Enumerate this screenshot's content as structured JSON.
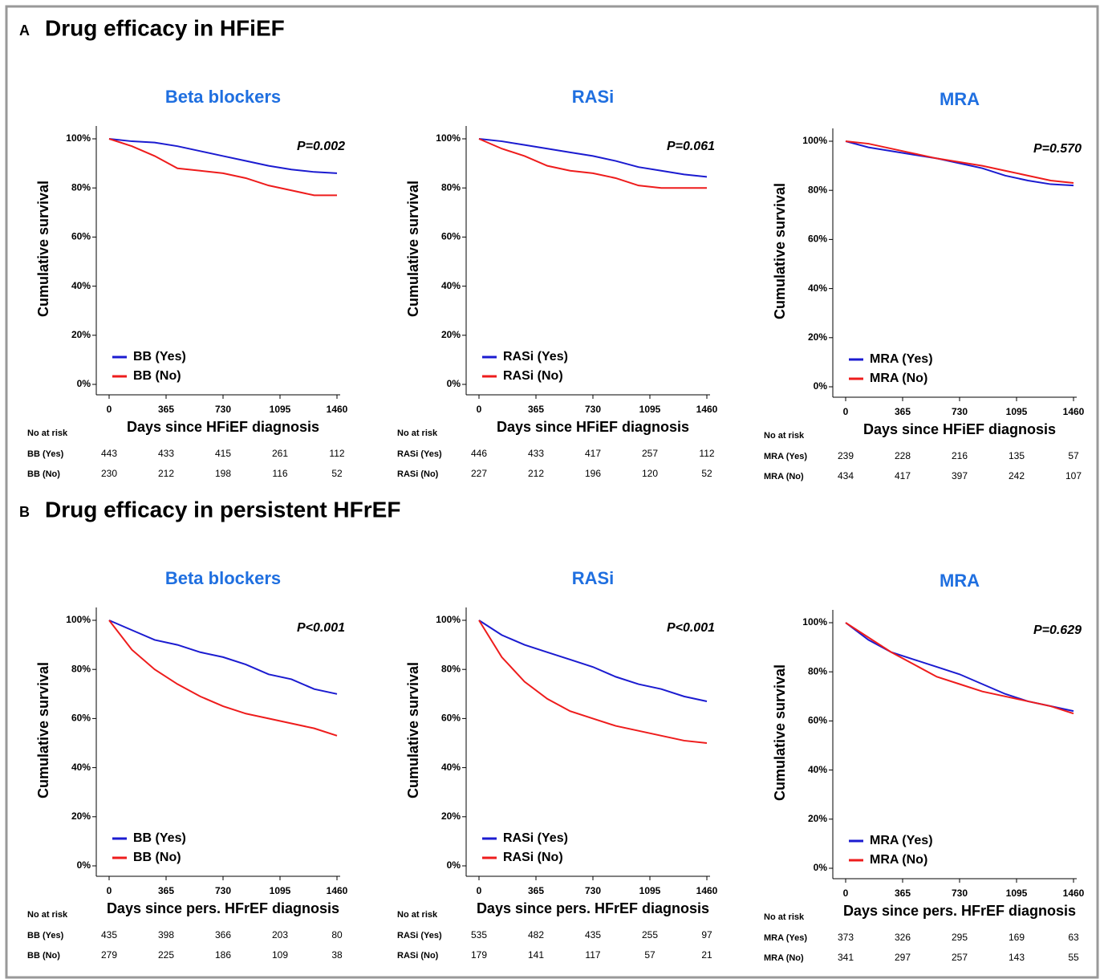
{
  "panels": [
    {
      "letter": "A",
      "title": "Drug efficacy in HFiEF"
    },
    {
      "letter": "B",
      "title": "Drug efficacy in persistent HFrEF"
    }
  ],
  "chart_data": [
    {
      "type": "line",
      "title": "Beta blockers",
      "ylabel": "Cumulative survival",
      "xlabel": "Days since HFiEF diagnosis",
      "annotation": "P=0.002",
      "x": [
        0,
        146,
        292,
        438,
        584,
        730,
        876,
        1022,
        1168,
        1314,
        1460
      ],
      "series": [
        {
          "name": "BB (Yes)",
          "color": "#1b1bd0",
          "values": [
            100,
            99,
            98.5,
            97,
            95,
            93,
            91,
            89,
            87.5,
            86.5,
            86
          ]
        },
        {
          "name": "BB (No)",
          "color": "#ee1c1c",
          "values": [
            100,
            97,
            93,
            88,
            87,
            86,
            84,
            81,
            79,
            77,
            77
          ]
        }
      ],
      "xlim": [
        0,
        1460
      ],
      "xticks": [
        0,
        365,
        730,
        1095,
        1460
      ],
      "ylim": [
        0,
        100
      ],
      "yticks": [
        {
          "value": 0,
          "label": "0%"
        },
        {
          "value": 20,
          "label": "20%"
        },
        {
          "value": 40,
          "label": "40%"
        },
        {
          "value": 60,
          "label": "60%"
        },
        {
          "value": 80,
          "label": "80%"
        },
        {
          "value": 100,
          "label": "100%"
        }
      ],
      "risk_table": {
        "title": "No at risk",
        "rows": [
          {
            "name": "BB (Yes)",
            "values": [
              443,
              433,
              415,
              261,
              112
            ]
          },
          {
            "name": "BB (No)",
            "values": [
              230,
              212,
              198,
              116,
              52
            ]
          }
        ]
      }
    },
    {
      "type": "line",
      "title": "RASi",
      "ylabel": "Cumulative survival",
      "xlabel": "Days since HFiEF diagnosis",
      "annotation": "P=0.061",
      "x": [
        0,
        146,
        292,
        438,
        584,
        730,
        876,
        1022,
        1168,
        1314,
        1460
      ],
      "series": [
        {
          "name": "RASi (Yes)",
          "color": "#1b1bd0",
          "values": [
            100,
            99,
            97.5,
            96,
            94.5,
            93,
            91,
            88.5,
            87,
            85.5,
            84.5
          ]
        },
        {
          "name": "RASi (No)",
          "color": "#ee1c1c",
          "values": [
            100,
            96,
            93,
            89,
            87,
            86,
            84,
            81,
            80,
            80,
            80
          ]
        }
      ],
      "xlim": [
        0,
        1460
      ],
      "xticks": [
        0,
        365,
        730,
        1095,
        1460
      ],
      "ylim": [
        0,
        100
      ],
      "yticks": [
        {
          "value": 0,
          "label": "0%"
        },
        {
          "value": 20,
          "label": "20%"
        },
        {
          "value": 40,
          "label": "40%"
        },
        {
          "value": 60,
          "label": "60%"
        },
        {
          "value": 80,
          "label": "80%"
        },
        {
          "value": 100,
          "label": "100%"
        }
      ],
      "risk_table": {
        "title": "No at risk",
        "rows": [
          {
            "name": "RASi (Yes)",
            "values": [
              446,
              433,
              417,
              257,
              112
            ]
          },
          {
            "name": "RASi (No)",
            "values": [
              227,
              212,
              196,
              120,
              52
            ]
          }
        ]
      }
    },
    {
      "type": "line",
      "title": "MRA",
      "ylabel": "Cumulative survival",
      "xlabel": "Days since HFiEF diagnosis",
      "annotation": "P=0.570",
      "x": [
        0,
        146,
        292,
        438,
        584,
        730,
        876,
        1022,
        1168,
        1314,
        1460
      ],
      "series": [
        {
          "name": "MRA (Yes)",
          "color": "#1b1bd0",
          "values": [
            100,
            97.5,
            96,
            94.5,
            93,
            91,
            89,
            86,
            84,
            82.5,
            82
          ]
        },
        {
          "name": "MRA (No)",
          "color": "#ee1c1c",
          "values": [
            100,
            99,
            97,
            95,
            93,
            91.5,
            90,
            88,
            86,
            84,
            83
          ]
        }
      ],
      "xlim": [
        0,
        1460
      ],
      "xticks": [
        0,
        365,
        730,
        1095,
        1460
      ],
      "ylim": [
        0,
        100
      ],
      "yticks": [
        {
          "value": 0,
          "label": "0%"
        },
        {
          "value": 20,
          "label": "20%"
        },
        {
          "value": 40,
          "label": "40%"
        },
        {
          "value": 60,
          "label": "60%"
        },
        {
          "value": 80,
          "label": "80%"
        },
        {
          "value": 100,
          "label": "100%"
        }
      ],
      "risk_table": {
        "title": "No at risk",
        "rows": [
          {
            "name": "MRA (Yes)",
            "values": [
              239,
              228,
              216,
              135,
              57
            ]
          },
          {
            "name": "MRA (No)",
            "values": [
              434,
              417,
              397,
              242,
              107
            ]
          }
        ]
      }
    },
    {
      "type": "line",
      "title": "Beta blockers",
      "ylabel": "Cumulative survival",
      "xlabel": "Days since pers. HFrEF diagnosis",
      "annotation": "P<0.001",
      "x": [
        0,
        146,
        292,
        438,
        584,
        730,
        876,
        1022,
        1168,
        1314,
        1460
      ],
      "series": [
        {
          "name": "BB (Yes)",
          "color": "#1b1bd0",
          "values": [
            100,
            96,
            92,
            90,
            87,
            85,
            82,
            78,
            76,
            72,
            70
          ]
        },
        {
          "name": "BB (No)",
          "color": "#ee1c1c",
          "values": [
            100,
            88,
            80,
            74,
            69,
            65,
            62,
            60,
            58,
            56,
            53
          ]
        }
      ],
      "xlim": [
        0,
        1460
      ],
      "xticks": [
        0,
        365,
        730,
        1095,
        1460
      ],
      "ylim": [
        0,
        100
      ],
      "yticks": [
        {
          "value": 0,
          "label": "0%"
        },
        {
          "value": 20,
          "label": "20%"
        },
        {
          "value": 40,
          "label": "40%"
        },
        {
          "value": 60,
          "label": "60%"
        },
        {
          "value": 80,
          "label": "80%"
        },
        {
          "value": 100,
          "label": "100%"
        }
      ],
      "risk_table": {
        "title": "No at risk",
        "rows": [
          {
            "name": "BB (Yes)",
            "values": [
              435,
              398,
              366,
              203,
              80
            ]
          },
          {
            "name": "BB (No)",
            "values": [
              279,
              225,
              186,
              109,
              38
            ]
          }
        ]
      }
    },
    {
      "type": "line",
      "title": "RASi",
      "ylabel": "Cumulative survival",
      "xlabel": "Days since pers. HFrEF diagnosis",
      "annotation": "P<0.001",
      "x": [
        0,
        146,
        292,
        438,
        584,
        730,
        876,
        1022,
        1168,
        1314,
        1460
      ],
      "series": [
        {
          "name": "RASi (Yes)",
          "color": "#1b1bd0",
          "values": [
            100,
            94,
            90,
            87,
            84,
            81,
            77,
            74,
            72,
            69,
            67
          ]
        },
        {
          "name": "RASi (No)",
          "color": "#ee1c1c",
          "values": [
            100,
            85,
            75,
            68,
            63,
            60,
            57,
            55,
            53,
            51,
            50
          ]
        }
      ],
      "xlim": [
        0,
        1460
      ],
      "xticks": [
        0,
        365,
        730,
        1095,
        1460
      ],
      "ylim": [
        0,
        100
      ],
      "yticks": [
        {
          "value": 0,
          "label": "0%"
        },
        {
          "value": 20,
          "label": "20%"
        },
        {
          "value": 40,
          "label": "40%"
        },
        {
          "value": 60,
          "label": "60%"
        },
        {
          "value": 80,
          "label": "80%"
        },
        {
          "value": 100,
          "label": "100%"
        }
      ],
      "risk_table": {
        "title": "No at risk",
        "rows": [
          {
            "name": "RASi (Yes)",
            "values": [
              535,
              482,
              435,
              255,
              97
            ]
          },
          {
            "name": "RASi (No)",
            "values": [
              179,
              141,
              117,
              57,
              21
            ]
          }
        ]
      }
    },
    {
      "type": "line",
      "title": "MRA",
      "ylabel": "Cumulative survival",
      "xlabel": "Days since pers. HFrEF diagnosis",
      "annotation": "P=0.629",
      "x": [
        0,
        146,
        292,
        438,
        584,
        730,
        876,
        1022,
        1168,
        1314,
        1460
      ],
      "series": [
        {
          "name": "MRA (Yes)",
          "color": "#1b1bd0",
          "values": [
            100,
            93,
            88,
            85,
            82,
            79,
            75,
            71,
            68,
            66,
            64
          ]
        },
        {
          "name": "MRA (No)",
          "color": "#ee1c1c",
          "values": [
            100,
            94,
            88,
            83,
            78,
            75,
            72,
            70,
            68,
            66,
            63
          ]
        }
      ],
      "xlim": [
        0,
        1460
      ],
      "xticks": [
        0,
        365,
        730,
        1095,
        1460
      ],
      "ylim": [
        0,
        100
      ],
      "yticks": [
        {
          "value": 0,
          "label": "0%"
        },
        {
          "value": 20,
          "label": "20%"
        },
        {
          "value": 40,
          "label": "40%"
        },
        {
          "value": 60,
          "label": "60%"
        },
        {
          "value": 80,
          "label": "80%"
        },
        {
          "value": 100,
          "label": "100%"
        }
      ],
      "risk_table": {
        "title": "No at risk",
        "rows": [
          {
            "name": "MRA (Yes)",
            "values": [
              373,
              326,
              295,
              169,
              63
            ]
          },
          {
            "name": "MRA (No)",
            "values": [
              341,
              297,
              257,
              143,
              55
            ]
          }
        ]
      }
    }
  ]
}
